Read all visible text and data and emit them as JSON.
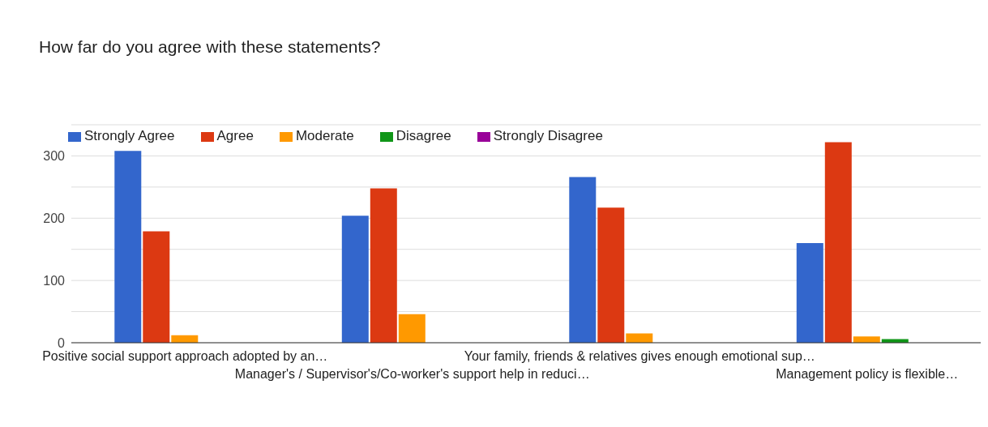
{
  "chart_data": {
    "type": "bar",
    "title": "How far do you agree with these statements?",
    "categories": [
      "Positive social support approach adopted by an…",
      "Manager's / Supervisor's/Co-worker's support help in reduci…",
      "Your family, friends & relatives gives enough emotional sup…",
      "Management policy is flexible…"
    ],
    "series": [
      {
        "name": "Strongly Agree",
        "color": "#3366cc",
        "values": [
          308,
          204,
          266,
          160
        ]
      },
      {
        "name": "Agree",
        "color": "#dc3912",
        "values": [
          179,
          248,
          217,
          322
        ]
      },
      {
        "name": "Moderate",
        "color": "#ff9900",
        "values": [
          12,
          46,
          15,
          10
        ]
      },
      {
        "name": "Disagree",
        "color": "#109618",
        "values": [
          0,
          0,
          0,
          6
        ]
      },
      {
        "name": "Strongly Disagree",
        "color": "#990099",
        "values": [
          0,
          0,
          0,
          0
        ]
      }
    ],
    "ylim": [
      0,
      350
    ],
    "yticks": [
      0,
      {
        "value": 50,
        "label": null
      },
      100,
      {
        "value": 150,
        "label": null
      },
      200,
      {
        "value": 250,
        "label": null
      },
      300,
      {
        "value": 350,
        "label": null
      }
    ],
    "grid": "y",
    "legend": "top left"
  }
}
